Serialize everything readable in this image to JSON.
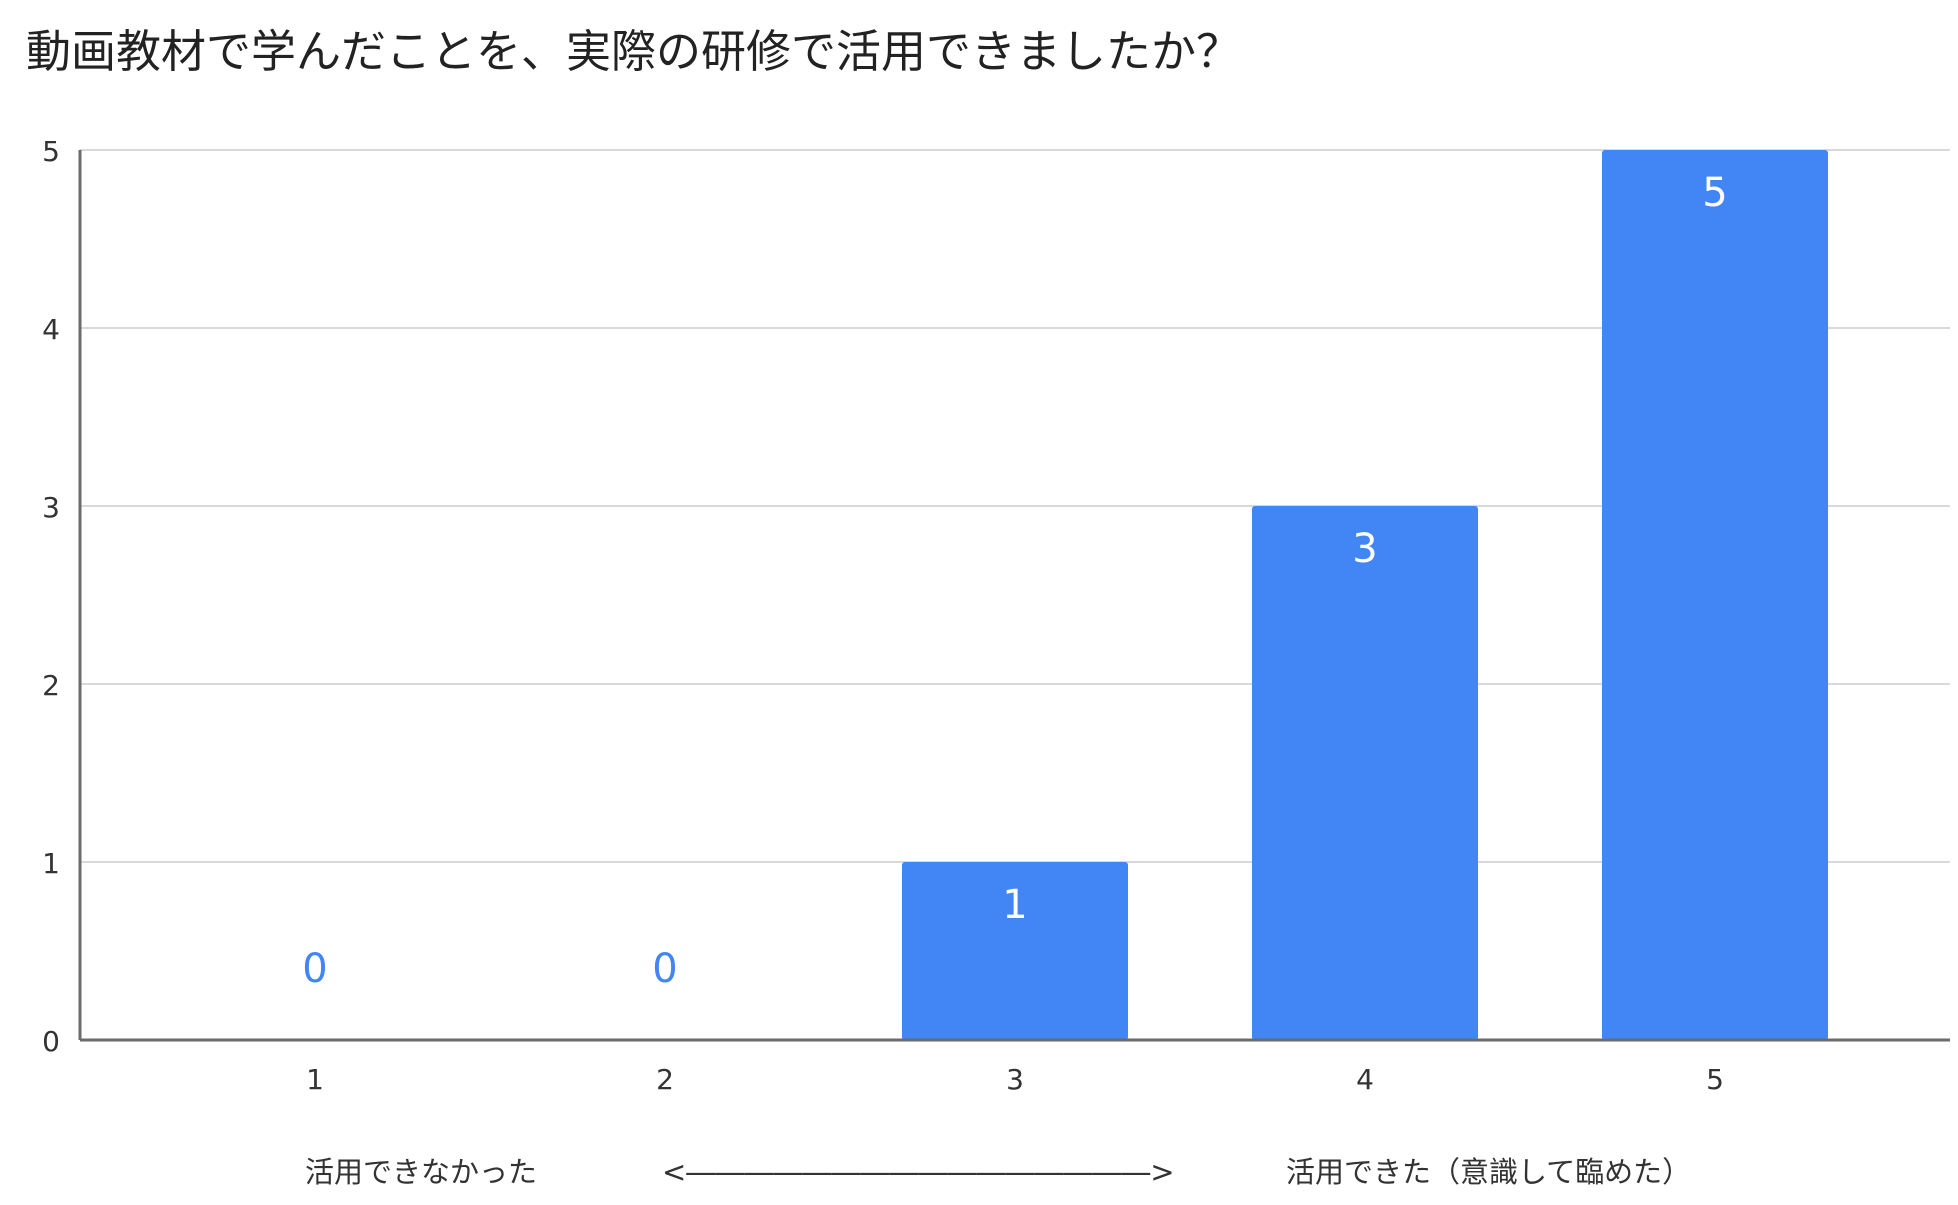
{
  "chart_data": {
    "type": "bar",
    "title": "動画教材で学んだことを、実際の研修で活用できましたか？",
    "categories": [
      "1",
      "2",
      "3",
      "4",
      "5"
    ],
    "values": [
      0,
      0,
      1,
      3,
      5
    ],
    "ylim": [
      0,
      5
    ],
    "yticks": [
      "0",
      "1",
      "2",
      "3",
      "4",
      "5"
    ],
    "grid": true,
    "legend": "none",
    "data_labels": true,
    "xlabel": {
      "left": "活用できなかった",
      "arrow": "<――――――――――――――――>",
      "right": "活用できた（意識して臨めた）"
    }
  },
  "colors": {
    "bar": "#4285f4",
    "label_inside": "#ffffff",
    "label_zero": "#4285f4",
    "gridline": "#d9d9d9",
    "axis": "#6b6b6b",
    "tick_text": "#333333",
    "title": "#222222"
  }
}
